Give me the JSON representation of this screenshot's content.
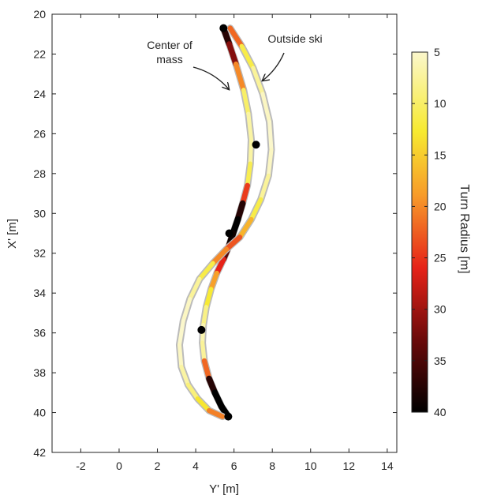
{
  "chart_data": {
    "type": "line",
    "xlabel": "Y' [m]",
    "ylabel": "X' [m]",
    "xlim": [
      -3.5,
      14.5
    ],
    "ylim": [
      42,
      20
    ],
    "x_ticks": [
      -2,
      0,
      2,
      4,
      6,
      8,
      10,
      12,
      14
    ],
    "y_ticks": [
      20,
      22,
      24,
      26,
      28,
      30,
      32,
      34,
      36,
      38,
      40,
      42
    ],
    "grid": false,
    "colorbar": {
      "label": "Turn Radius [m]",
      "range": [
        5,
        40
      ],
      "ticks": [
        5,
        10,
        15,
        20,
        25,
        30,
        35,
        40
      ],
      "colormap": "black-red-orange-yellow-lightyellow (40 = black, 5 = pale yellow)"
    },
    "series": [
      {
        "name": "Center of mass",
        "x": [
          5.45,
          5.75,
          6.1,
          6.5,
          6.75,
          6.9,
          6.85,
          6.7,
          6.45,
          6.2,
          5.95,
          5.75,
          5.45,
          5.1,
          4.8,
          4.55,
          4.4,
          4.35,
          4.45,
          4.7,
          5.0,
          5.35,
          5.7
        ],
        "y": [
          20.7,
          21.5,
          22.5,
          23.8,
          25.0,
          26.3,
          27.5,
          28.6,
          29.5,
          30.3,
          31.0,
          31.6,
          32.3,
          33.0,
          33.8,
          34.7,
          35.6,
          36.5,
          37.4,
          38.3,
          39.0,
          39.7,
          40.2
        ],
        "turn_radius": [
          40,
          35,
          28,
          12,
          8,
          6,
          8,
          14,
          35,
          40,
          40,
          38,
          30,
          22,
          15,
          10,
          7,
          6,
          9,
          35,
          40,
          40,
          40
        ]
      },
      {
        "name": "Outside ski",
        "x": [
          5.8,
          6.4,
          7.0,
          7.5,
          7.85,
          7.95,
          7.8,
          7.4,
          6.9,
          6.3,
          5.6,
          4.9,
          4.2,
          3.7,
          3.35,
          3.15,
          3.25,
          3.6,
          4.1,
          4.7,
          5.4
        ],
        "y": [
          20.7,
          21.6,
          22.7,
          24.0,
          25.4,
          26.8,
          28.1,
          29.3,
          30.3,
          31.2,
          31.8,
          32.5,
          33.3,
          34.3,
          35.4,
          36.6,
          37.7,
          38.6,
          39.3,
          39.9,
          40.2
        ],
        "turn_radius": [
          30,
          14,
          9,
          6,
          5,
          5,
          6,
          9,
          14,
          20,
          26,
          14,
          9,
          6,
          5,
          5,
          6,
          8,
          10,
          16,
          25
        ]
      }
    ],
    "markers": [
      {
        "x": 5.45,
        "y": 20.7
      },
      {
        "x": 7.15,
        "y": 26.55
      },
      {
        "x": 5.75,
        "y": 31.0
      },
      {
        "x": 4.3,
        "y": 35.85
      },
      {
        "x": 5.7,
        "y": 40.2
      }
    ],
    "annotations": [
      {
        "text_lines": [
          "Center of",
          "mass"
        ],
        "target": {
          "x": 6.9,
          "y": 23.8
        }
      },
      {
        "text_lines": [
          "Outside ski"
        ],
        "target": {
          "x": 7.5,
          "y": 23.4
        }
      }
    ]
  }
}
